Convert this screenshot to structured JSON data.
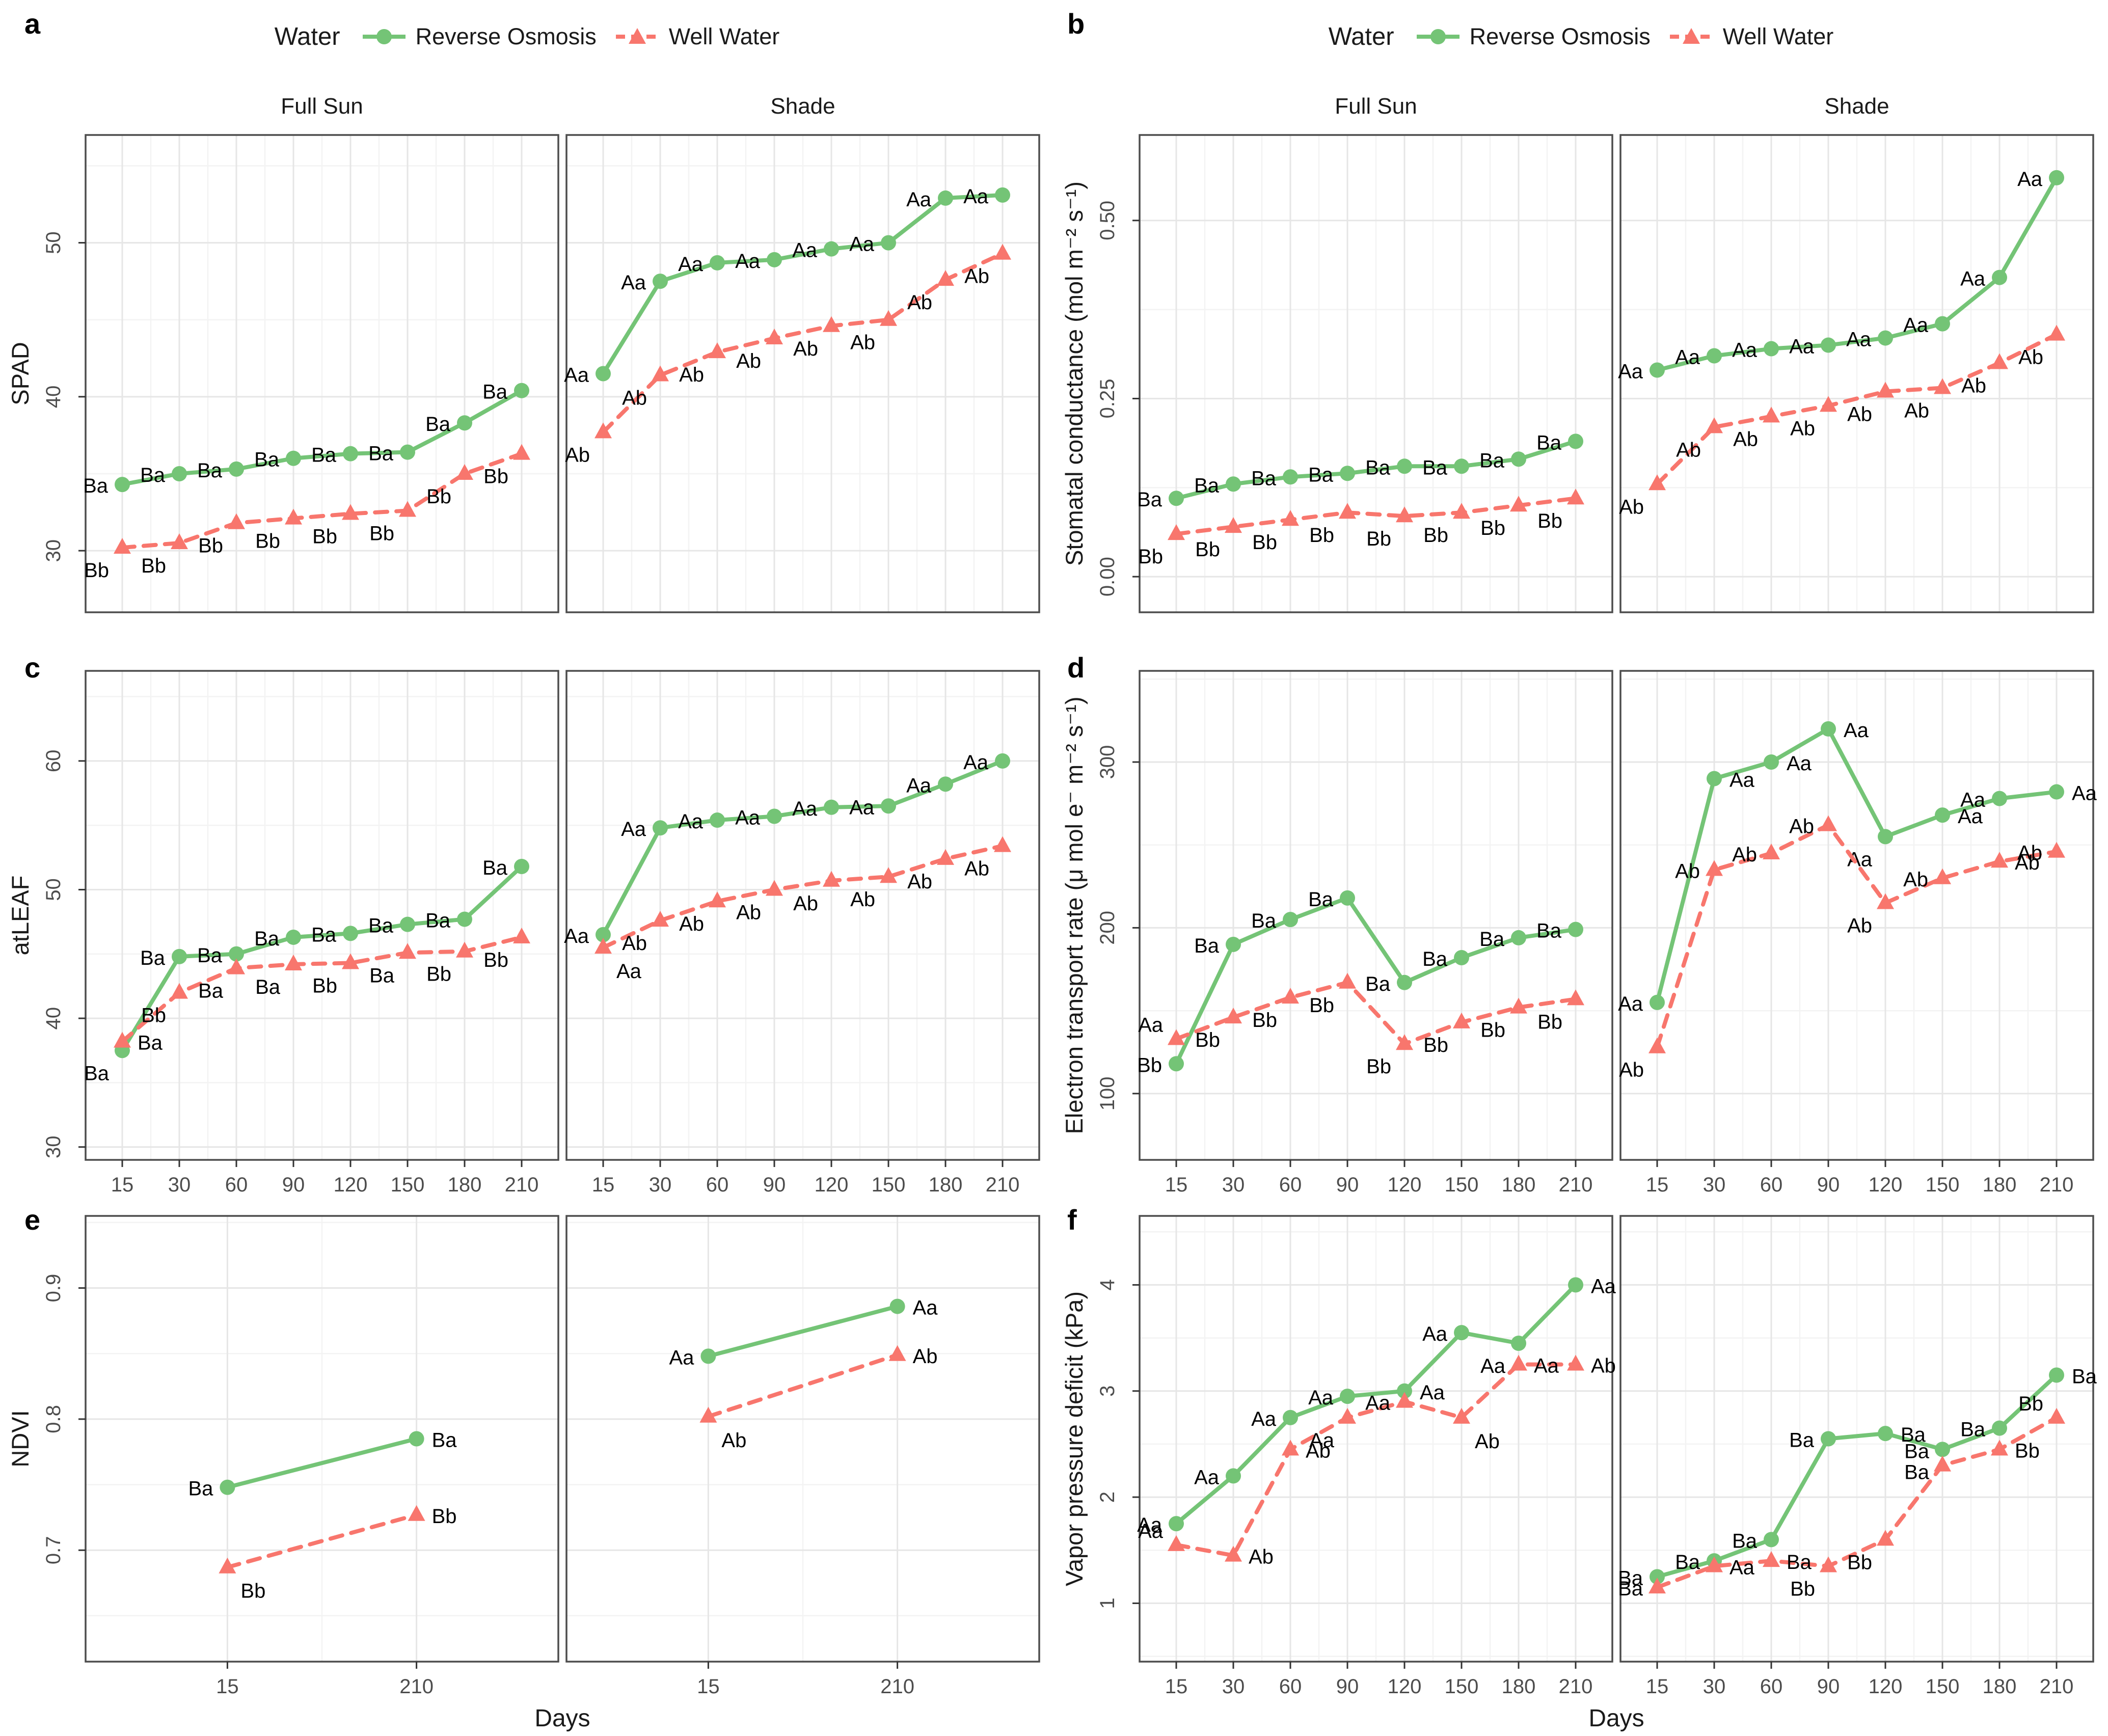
{
  "legend": {
    "title": "Water",
    "items": [
      {
        "label": "Reverse Osmosis"
      },
      {
        "label": "Well Water"
      }
    ]
  },
  "colors": {
    "reverse_osmosis": "#74c476",
    "well_water": "#f8766d",
    "grid_major": "#e6e6e6",
    "grid_minor": "#f3f3f3",
    "panel_border": "#4d4d4d",
    "tick_text": "#4d4d4d",
    "title_text": "#1a1a1a",
    "point_label": "#000000"
  },
  "chart_data": {
    "type": "line",
    "x_label": "Days",
    "x_categories": [
      15,
      30,
      60,
      90,
      120,
      150,
      180,
      210
    ],
    "facet_labels": [
      "Full Sun",
      "Shade"
    ],
    "legend_position": "top",
    "grid": "on",
    "series_meta": [
      {
        "name": "Reverse Osmosis",
        "key": "reverse-osmosis",
        "marker": "circle",
        "line": "solid"
      },
      {
        "name": "Well Water",
        "key": "well-water",
        "marker": "triangle",
        "line": "dashed"
      }
    ],
    "panels": [
      {
        "tag": "a",
        "ylabel": "SPAD",
        "ylim": [
          26,
          57
        ],
        "yticks": [
          {
            "v": 30,
            "t": "30"
          },
          {
            "v": 40,
            "t": "40"
          },
          {
            "v": 50,
            "t": "50"
          }
        ],
        "facets": [
          {
            "name": "Full Sun",
            "series": [
              {
                "values": [
                  34.3,
                  35.0,
                  35.3,
                  36.0,
                  36.3,
                  36.4,
                  38.3,
                  40.4
                ],
                "labels": [
                  "Ba",
                  "Ba",
                  "Ba",
                  "Ba",
                  "Ba",
                  "Ba",
                  "Ba",
                  "Ba"
                ]
              },
              {
                "values": [
                  30.2,
                  30.5,
                  31.8,
                  32.1,
                  32.4,
                  32.6,
                  35.0,
                  36.3
                ],
                "labels": [
                  "Bb",
                  "Bb",
                  "Bb",
                  "Bb",
                  "Bb",
                  "Bb",
                  "Bb",
                  "Bb"
                ]
              }
            ]
          },
          {
            "name": "Shade",
            "series": [
              {
                "values": [
                  41.5,
                  47.5,
                  48.7,
                  48.9,
                  49.6,
                  50.0,
                  52.9,
                  53.1
                ],
                "labels": [
                  "Aa",
                  "Aa",
                  "Aa",
                  "Aa",
                  "Aa",
                  "Aa",
                  "Aa",
                  "Aa"
                ]
              },
              {
                "values": [
                  37.7,
                  41.4,
                  42.9,
                  43.8,
                  44.6,
                  45.0,
                  47.6,
                  49.3
                ],
                "labels": [
                  "Ab",
                  "Ab",
                  "Ab",
                  "Ab",
                  "Ab",
                  "Ab",
                  "Ab",
                  "Ab"
                ]
              }
            ]
          }
        ]
      },
      {
        "tag": "b",
        "ylabel": "Stomatal conductance (mol m⁻² s⁻¹)",
        "ylim": [
          -0.05,
          0.62
        ],
        "yticks": [
          {
            "v": 0.0,
            "t": "0.00"
          },
          {
            "v": 0.25,
            "t": "0.25"
          },
          {
            "v": 0.5,
            "t": "0.50"
          }
        ],
        "facets": [
          {
            "name": "Full Sun",
            "series": [
              {
                "values": [
                  0.11,
                  0.13,
                  0.14,
                  0.145,
                  0.155,
                  0.155,
                  0.165,
                  0.19
                ],
                "labels": [
                  "Ba",
                  "Ba",
                  "Ba",
                  "Ba",
                  "Ba",
                  "Ba",
                  "Ba",
                  "Ba"
                ]
              },
              {
                "values": [
                  0.06,
                  0.07,
                  0.08,
                  0.09,
                  0.085,
                  0.09,
                  0.1,
                  0.11
                ],
                "labels": [
                  "Bb",
                  "Bb",
                  "Bb",
                  "Bb",
                  "Bb",
                  "Bb",
                  "Bb",
                  "Bb"
                ]
              }
            ]
          },
          {
            "name": "Shade",
            "series": [
              {
                "values": [
                  0.29,
                  0.31,
                  0.32,
                  0.325,
                  0.335,
                  0.355,
                  0.42,
                  0.56
                ],
                "labels": [
                  "Aa",
                  "Aa",
                  "Aa",
                  "Aa",
                  "Aa",
                  "Aa",
                  "Aa",
                  "Aa"
                ]
              },
              {
                "values": [
                  0.13,
                  0.21,
                  0.225,
                  0.24,
                  0.26,
                  0.265,
                  0.3,
                  0.34
                ],
                "labels": [
                  "Ab",
                  "Ab",
                  "Ab",
                  "Ab",
                  "Ab",
                  "Ab",
                  "Ab",
                  "Ab"
                ]
              }
            ]
          }
        ]
      },
      {
        "tag": "c",
        "ylabel": "atLEAF",
        "ylim": [
          29,
          67
        ],
        "yticks": [
          {
            "v": 30,
            "t": "30"
          },
          {
            "v": 40,
            "t": "40"
          },
          {
            "v": 50,
            "t": "50"
          },
          {
            "v": 60,
            "t": "60"
          }
        ],
        "facets": [
          {
            "name": "Full Sun",
            "series": [
              {
                "values": [
                  37.5,
                  44.8,
                  45.0,
                  46.3,
                  46.6,
                  47.3,
                  47.7,
                  51.8
                ],
                "labels": [
                  "Ba",
                  "Ba",
                  "Ba",
                  "Ba",
                  "Ba",
                  "Ba",
                  "Ba",
                  "Ba"
                ],
                "label_sides": [
                  "leftDown",
                  "left",
                  "left",
                  "left",
                  "left",
                  "left",
                  "left",
                  "left"
                ]
              },
              {
                "values": [
                  38.2,
                  42.0,
                  43.9,
                  44.2,
                  44.3,
                  45.1,
                  45.2,
                  46.3
                ],
                "labels": [
                  "Ba",
                  "Bb",
                  "Ba",
                  "Ba",
                  "Bb",
                  "Ba",
                  "Bb",
                  "Bb"
                ],
                "label_sides": [
                  "right",
                  "leftDown",
                  "leftDown",
                  "leftDown",
                  "leftDown",
                  "leftDown",
                  "leftDown",
                  "leftDown"
                ]
              }
            ]
          },
          {
            "name": "Shade",
            "series": [
              {
                "values": [
                  46.5,
                  54.8,
                  55.4,
                  55.7,
                  56.4,
                  56.5,
                  58.2,
                  60.0
                ],
                "labels": [
                  "Aa",
                  "Aa",
                  "Aa",
                  "Aa",
                  "Aa",
                  "Aa",
                  "Aa",
                  "Aa"
                ]
              },
              {
                "values": [
                  45.5,
                  47.6,
                  49.1,
                  50.0,
                  50.7,
                  51.0,
                  52.4,
                  53.4
                ],
                "labels": [
                  "Aa",
                  "Ab",
                  "Ab",
                  "Ab",
                  "Ab",
                  "Ab",
                  "Ab",
                  "Ab"
                ],
                "label_sides": [
                  "rightDown",
                  "leftDown",
                  "leftDown",
                  "leftDown",
                  "leftDown",
                  "leftDown",
                  "leftDown",
                  "leftDown"
                ]
              }
            ]
          }
        ]
      },
      {
        "tag": "d",
        "ylabel": "Electron transport rate (μ mol e⁻ m⁻² s⁻¹)",
        "ylim": [
          60,
          355
        ],
        "yticks": [
          {
            "v": 100,
            "t": "100"
          },
          {
            "v": 200,
            "t": "200"
          },
          {
            "v": 300,
            "t": "300"
          }
        ],
        "facets": [
          {
            "name": "Full Sun",
            "series": [
              {
                "values": [
                  118,
                  190,
                  205,
                  218,
                  167,
                  182,
                  194,
                  199
                ],
                "labels": [
                  "Bb",
                  "Ba",
                  "Ba",
                  "Ba",
                  "Ba",
                  "Ba",
                  "Ba",
                  "Ba"
                ]
              },
              {
                "values": [
                  133,
                  146,
                  158,
                  167,
                  130,
                  143,
                  152,
                  157
                ],
                "labels": [
                  "Aa",
                  "Bb",
                  "Bb",
                  "Bb",
                  "Bb",
                  "Bb",
                  "Bb",
                  "Bb"
                ],
                "label_sides": [
                  "leftUp",
                  "leftDown",
                  "leftDown",
                  "leftDown",
                  "leftDown",
                  "leftDown",
                  "leftDown",
                  "leftDown"
                ]
              }
            ]
          },
          {
            "name": "Shade",
            "series": [
              {
                "values": [
                  155,
                  290,
                  300,
                  320,
                  255,
                  268,
                  278,
                  282
                ],
                "labels": [
                  "Aa",
                  "Aa",
                  "Aa",
                  "Aa",
                  "Aa",
                  "Aa",
                  "Aa",
                  "Aa"
                ],
                "label_sides": [
                  "left",
                  "right",
                  "right",
                  "right",
                  "leftDown",
                  "right",
                  "left",
                  "right"
                ]
              },
              {
                "values": [
                  128,
                  235,
                  245,
                  262,
                  215,
                  230,
                  240,
                  246
                ],
                "labels": [
                  "Ab",
                  "Ab",
                  "Ab",
                  "Ab",
                  "Ab",
                  "Ab",
                  "Ab",
                  "Ab"
                ],
                "label_sides": [
                  "leftDown",
                  "left",
                  "left",
                  "left",
                  "leftDown",
                  "left",
                  "right",
                  "left"
                ]
              }
            ]
          }
        ]
      },
      {
        "tag": "e",
        "ylabel": "NDVI",
        "ylim": [
          0.615,
          0.955
        ],
        "yticks": [
          {
            "v": 0.7,
            "t": "0.7"
          },
          {
            "v": 0.8,
            "t": "0.8"
          },
          {
            "v": 0.9,
            "t": "0.9"
          }
        ],
        "x_categories": [
          15,
          210
        ],
        "facets": [
          {
            "name": "Full Sun",
            "series": [
              {
                "values": [
                  0.748,
                  0.785
                ],
                "labels": [
                  "Ba",
                  "Ba"
                ],
                "label_sides": [
                  "left",
                  "right"
                ]
              },
              {
                "values": [
                  0.687,
                  0.727
                ],
                "labels": [
                  "Bb",
                  "Bb"
                ],
                "label_sides": [
                  "rightDown",
                  "right"
                ]
              }
            ]
          },
          {
            "name": "Shade",
            "series": [
              {
                "values": [
                  0.848,
                  0.886
                ],
                "labels": [
                  "Aa",
                  "Aa"
                ],
                "label_sides": [
                  "left",
                  "right"
                ]
              },
              {
                "values": [
                  0.802,
                  0.849
                ],
                "labels": [
                  "Ab",
                  "Ab"
                ],
                "label_sides": [
                  "rightDown",
                  "right"
                ]
              }
            ]
          }
        ]
      },
      {
        "tag": "f",
        "ylabel": "Vapor pressure deficit (kPa)",
        "ylim": [
          0.45,
          4.65
        ],
        "yticks": [
          {
            "v": 1,
            "t": "1"
          },
          {
            "v": 2,
            "t": "2"
          },
          {
            "v": 3,
            "t": "3"
          },
          {
            "v": 4,
            "t": "4"
          }
        ],
        "facets": [
          {
            "name": "Full Sun",
            "series": [
              {
                "values": [
                  1.75,
                  2.2,
                  2.75,
                  2.95,
                  3.0,
                  3.55,
                  3.45,
                  4.0
                ],
                "labels": [
                  "Aa",
                  "Aa",
                  "Aa",
                  "Aa",
                  "Aa",
                  "Aa",
                  "Aa",
                  "Aa"
                ],
                "label_sides": [
                  "left",
                  "left",
                  "left",
                  "left",
                  "right",
                  "left",
                  "leftDown",
                  "right"
                ]
              },
              {
                "values": [
                  1.55,
                  1.45,
                  2.45,
                  2.75,
                  2.9,
                  2.75,
                  3.25,
                  3.25
                ],
                "labels": [
                  "Aa",
                  "Ab",
                  "Ab",
                  "Aa",
                  "Aa",
                  "Ab",
                  "Aa",
                  "Ab"
                ],
                "label_sides": [
                  "leftUp",
                  "right",
                  "right",
                  "leftDown",
                  "left",
                  "rightDown",
                  "right",
                  "right"
                ]
              }
            ]
          },
          {
            "name": "Shade",
            "series": [
              {
                "values": [
                  1.25,
                  1.4,
                  1.6,
                  2.55,
                  2.6,
                  2.45,
                  2.65,
                  3.15
                ],
                "labels": [
                  "Ba",
                  "Ba",
                  "Ba",
                  "Ba",
                  "Ba",
                  "Ba",
                  "Ba",
                  "Ba"
                ],
                "label_sides": [
                  "left",
                  "left",
                  "left",
                  "left",
                  "right",
                  "leftDown",
                  "left",
                  "right"
                ]
              },
              {
                "values": [
                  1.15,
                  1.35,
                  1.4,
                  1.35,
                  1.6,
                  2.3,
                  2.45,
                  2.75
                ],
                "labels": [
                  "Ba",
                  "Aa",
                  "Ba",
                  "Bb",
                  "Bb",
                  "Ba",
                  "Bb",
                  "Bb"
                ],
                "label_sides": [
                  "left",
                  "right",
                  "right",
                  "leftDown",
                  "leftDown",
                  "leftUp",
                  "right",
                  "leftUp"
                ]
              }
            ]
          }
        ]
      }
    ]
  }
}
